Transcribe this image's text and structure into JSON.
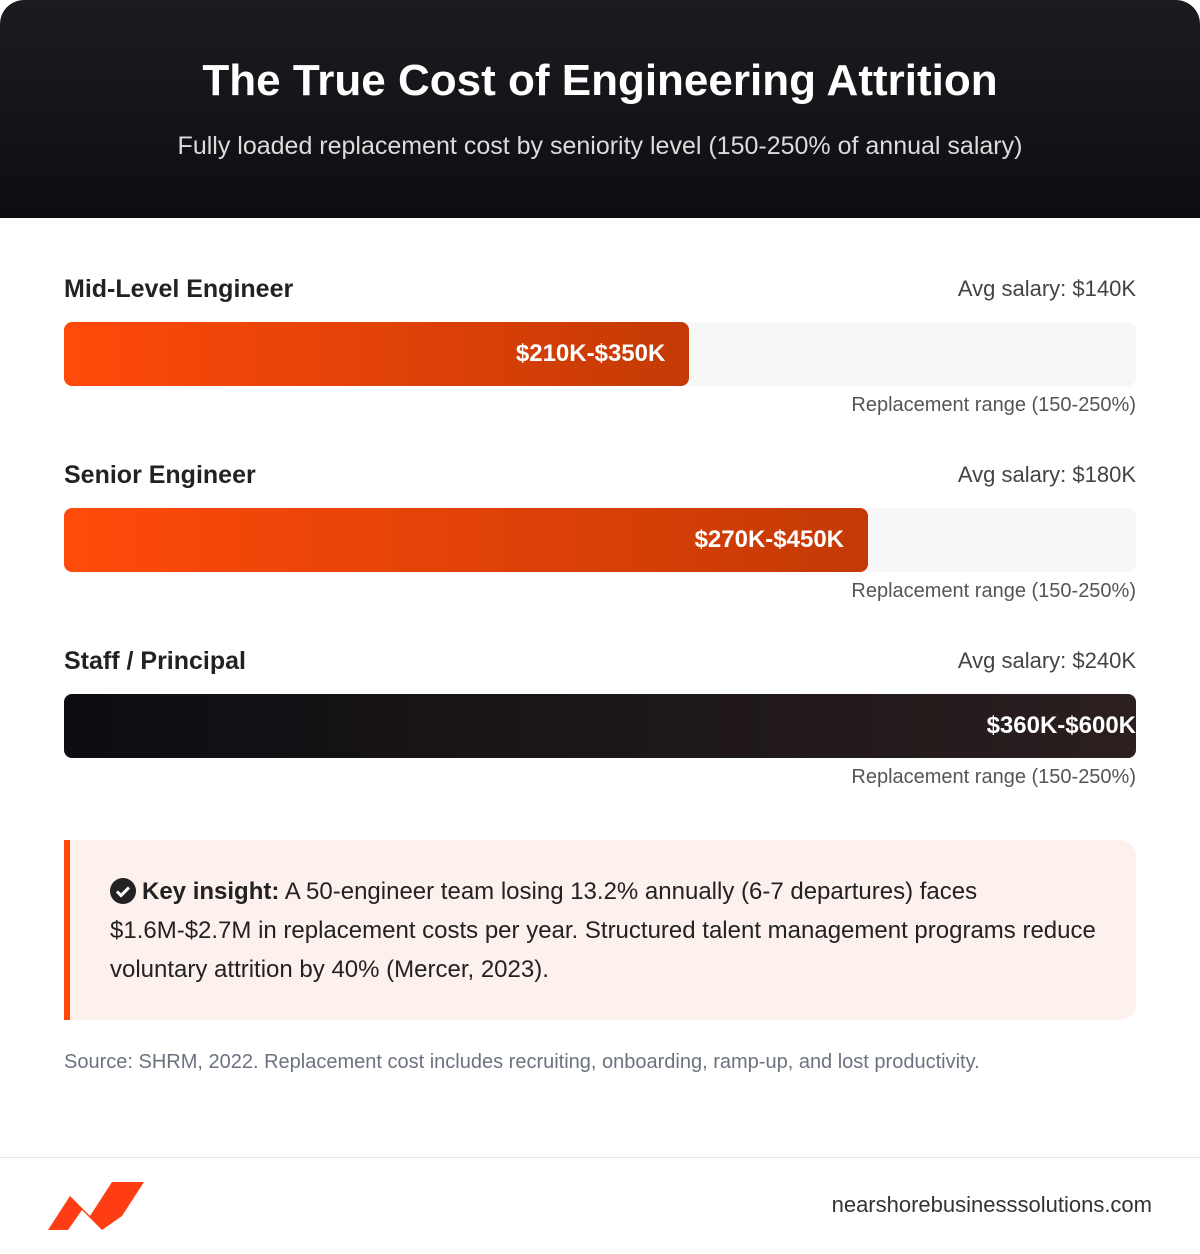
{
  "chart_data": {
    "type": "bar",
    "orientation": "horizontal",
    "title": "The True Cost of Engineering Attrition",
    "subtitle": "Fully loaded replacement cost by seniority level (150-250% of annual salary)",
    "categories": [
      "Mid-Level Engineer",
      "Senior Engineer",
      "Staff / Principal"
    ],
    "salary_labels": [
      "Avg salary: $140K",
      "Avg salary: $180K",
      "Avg salary: $240K"
    ],
    "values": [
      350,
      450,
      600
    ],
    "value_labels": [
      "$210K-$350K",
      "$270K-$450K",
      "$360K-$600K"
    ],
    "range_notes": [
      "Replacement range (150-250%)",
      "Replacement range (150-250%)",
      "Replacement range (150-250%)"
    ],
    "xlim": [
      0,
      600
    ],
    "colors": [
      [
        "#ff4a0a",
        "#c43a06"
      ],
      [
        "#ff4a0a",
        "#c43a06"
      ],
      [
        "#0d0d12",
        "#2b1f1f"
      ]
    ]
  },
  "insight": {
    "label": "Key insight:",
    "text": "A 50-engineer team losing 13.2% annually (6-7 departures) faces $1.6M-$2.7M in replacement costs per year. Structured talent management programs reduce voluntary attrition by 40% (Mercer, 2023)."
  },
  "source": "Source: SHRM, 2022. Replacement cost includes recruiting, onboarding, ramp-up, and lost productivity.",
  "footer": {
    "website": "nearshorebusinesssolutions.com"
  }
}
